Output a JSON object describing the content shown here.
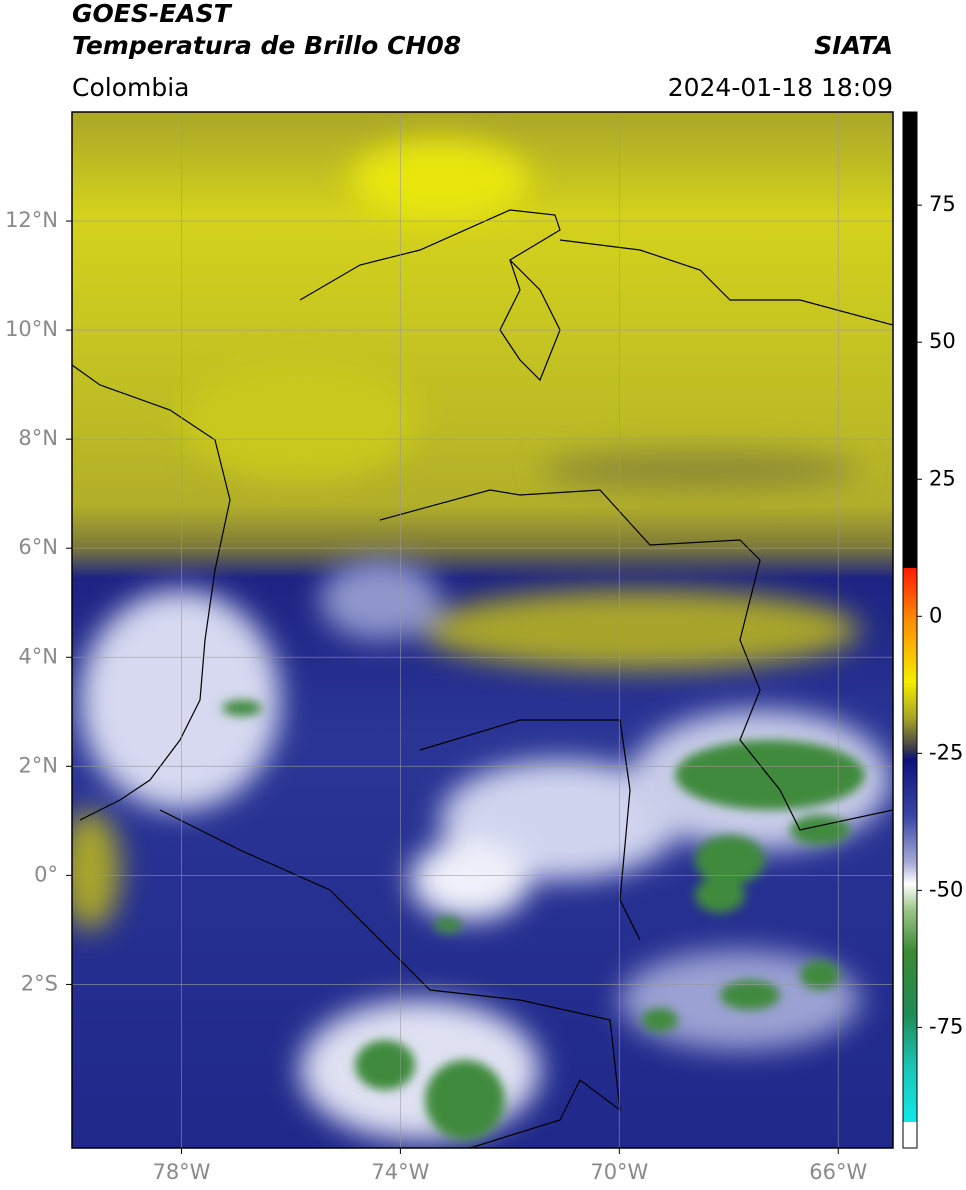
{
  "header": {
    "title": "GOES-EAST",
    "subtitle": "Temperatura de Brillo CH08",
    "source": "SIATA",
    "region": "Colombia",
    "datetime": "2024-01-18 18:09"
  },
  "map": {
    "xlim": [
      -80,
      -65
    ],
    "ylim": [
      -5,
      14
    ],
    "xticks": [
      {
        "value": -78,
        "label": "78°W"
      },
      {
        "value": -74,
        "label": "74°W"
      },
      {
        "value": -70,
        "label": "70°W"
      },
      {
        "value": -66,
        "label": "66°W"
      }
    ],
    "yticks": [
      {
        "value": 12,
        "label": "12°N"
      },
      {
        "value": 10,
        "label": "10°N"
      },
      {
        "value": 8,
        "label": "8°N"
      },
      {
        "value": 6,
        "label": "6°N"
      },
      {
        "value": 4,
        "label": "4°N"
      },
      {
        "value": 2,
        "label": "2°N"
      },
      {
        "value": 0,
        "label": "0°"
      },
      {
        "value": -2,
        "label": "2°S"
      }
    ]
  },
  "colorbar": {
    "lim": [
      -97,
      92
    ],
    "ticks": [
      75,
      50,
      25,
      0,
      -25,
      -50,
      -75
    ]
  }
}
